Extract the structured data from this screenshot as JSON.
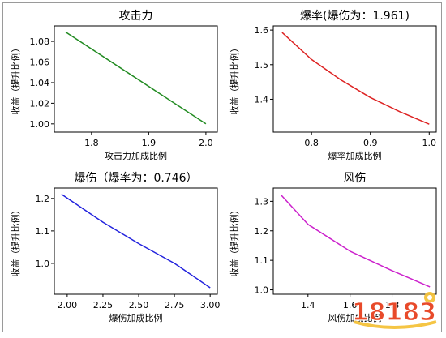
{
  "chart_data": [
    {
      "type": "line",
      "title": "攻击力",
      "xlabel": "攻击力加成比例",
      "ylabel": "收益（提升比例）",
      "color": "#228b22",
      "x": [
        1.755,
        2.0
      ],
      "y": [
        1.089,
        1.0
      ],
      "xlim": [
        1.735,
        2.02
      ],
      "ylim": [
        0.992,
        1.095
      ],
      "xticks": [
        1.8,
        1.9,
        2.0
      ],
      "xtick_labels": [
        "1.8",
        "1.9",
        "2.0"
      ],
      "yticks": [
        1.0,
        1.02,
        1.04,
        1.06,
        1.08
      ],
      "ytick_labels": [
        "1.00",
        "1.02",
        "1.04",
        "1.06",
        "1.08"
      ],
      "grid": false
    },
    {
      "type": "line",
      "title": "爆率(爆伤为：1.961)",
      "xlabel": "爆率加成比例",
      "ylabel": "收益（提升比例）",
      "color": "#dd2222",
      "x": [
        0.75,
        0.8,
        0.85,
        0.9,
        0.95,
        1.0
      ],
      "y": [
        1.593,
        1.515,
        1.456,
        1.405,
        1.364,
        1.328
      ],
      "xlim": [
        0.735,
        1.012
      ],
      "ylim": [
        1.305,
        1.612
      ],
      "xticks": [
        0.8,
        0.9,
        1.0
      ],
      "xtick_labels": [
        "0.8",
        "0.9",
        "1.0"
      ],
      "yticks": [
        1.4,
        1.5,
        1.6
      ],
      "ytick_labels": [
        "1.4",
        "1.5",
        "1.6"
      ],
      "grid": false
    },
    {
      "type": "line",
      "title": "爆伤（爆率为：0.746）",
      "xlabel": "爆伤加成比例",
      "ylabel": "收益（提升比例）",
      "color": "#2222dd",
      "x": [
        1.96,
        2.25,
        2.5,
        2.75,
        3.0
      ],
      "y": [
        1.213,
        1.127,
        1.061,
        1.0,
        0.925
      ],
      "xlim": [
        1.91,
        3.05
      ],
      "ylim": [
        0.905,
        1.232
      ],
      "xticks": [
        2.0,
        2.25,
        2.5,
        2.75,
        3.0
      ],
      "xtick_labels": [
        "2.00",
        "2.25",
        "2.50",
        "2.75",
        "3.00"
      ],
      "yticks": [
        1.0,
        1.1,
        1.2
      ],
      "ytick_labels": [
        "1.0",
        "1.1",
        "1.2"
      ],
      "grid": false
    },
    {
      "type": "line",
      "title": "风伤",
      "xlabel": "风伤加成比例",
      "ylabel": "收益（提升比例）",
      "color": "#cc22cc",
      "x": [
        1.27,
        1.4,
        1.6,
        1.8,
        1.98
      ],
      "y": [
        1.323,
        1.222,
        1.131,
        1.065,
        1.01
      ],
      "xlim": [
        1.235,
        2.01
      ],
      "ylim": [
        0.985,
        1.345
      ],
      "xticks": [
        1.4,
        1.6,
        1.8
      ],
      "xtick_labels": [
        "1.4",
        "1.6",
        "1.8"
      ],
      "yticks": [
        1.0,
        1.1,
        1.2,
        1.3
      ],
      "ytick_labels": [
        "1.0",
        "1.1",
        "1.2",
        "1.3"
      ],
      "grid": false
    }
  ],
  "watermark": {
    "logo_text": "18183"
  }
}
